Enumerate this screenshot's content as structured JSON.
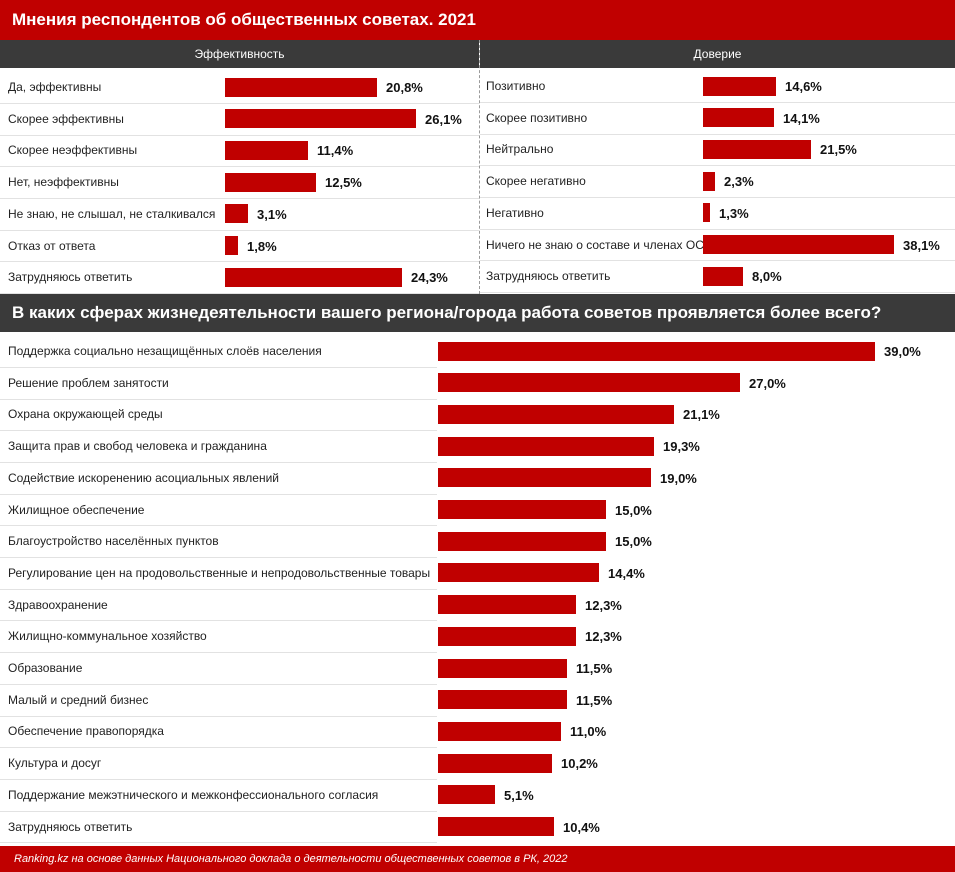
{
  "title": "Мнения респондентов об общественных советах. 2021",
  "colors": {
    "accent": "#c00000",
    "header_dark": "#3a3a3a"
  },
  "chart_data": [
    {
      "type": "bar",
      "orientation": "horizontal",
      "title": "Эффективность",
      "categories": [
        "Да, эффективны",
        "Скорее эффективны",
        "Скорее неэффективны",
        "Нет, неэффективны",
        "Не знаю, не слышал, не сталкивался",
        "Отказ от ответа",
        "Затрудняюсь ответить"
      ],
      "values": [
        20.8,
        26.1,
        11.4,
        12.5,
        3.1,
        1.8,
        24.3
      ],
      "value_labels": [
        "20,8%",
        "26,1%",
        "11,4%",
        "12,5%",
        "3,1%",
        "1,8%",
        "24,3%"
      ],
      "unit": "%"
    },
    {
      "type": "bar",
      "orientation": "horizontal",
      "title": "Доверие",
      "categories": [
        "Позитивно",
        "Скорее позитивно",
        "Нейтрально",
        "Скорее негативно",
        "Негативно",
        "Ничего не знаю о составе и членах ОС",
        "Затрудняюсь ответить"
      ],
      "values": [
        14.6,
        14.1,
        21.5,
        2.3,
        1.3,
        38.1,
        8.0
      ],
      "value_labels": [
        "14,6%",
        "14,1%",
        "21,5%",
        "2,3%",
        "1,3%",
        "38,1%",
        "8,0%"
      ],
      "unit": "%"
    },
    {
      "type": "bar",
      "orientation": "horizontal",
      "title": "В каких сферах жизнедеятельности вашего региона/города работа советов проявляется более всего?",
      "categories": [
        "Поддержка социально незащищённых слоёв населения",
        "Решение проблем занятости",
        "Охрана окружающей среды",
        "Защита прав и свобод человека и гражданина",
        "Содействие искоренению асоциальных явлений",
        "Жилищное обеспечение",
        "Благоустройство населённых пунктов",
        "Регулирование цен на продовольственные и непродовольственные товары",
        "Здравоохранение",
        "Жилищно-коммунальное хозяйство",
        "Образование",
        "Малый и средний бизнес",
        "Обеспечение правопорядка",
        "Культура и досуг",
        "Поддержание межэтнического и межконфессионального согласия",
        "Затрудняюсь ответить"
      ],
      "values": [
        39.0,
        27.0,
        21.1,
        19.3,
        19.0,
        15.0,
        15.0,
        14.4,
        12.3,
        12.3,
        11.5,
        11.5,
        11.0,
        10.2,
        5.1,
        10.4
      ],
      "value_labels": [
        "39,0%",
        "27,0%",
        "21,1%",
        "19,3%",
        "19,0%",
        "15,0%",
        "15,0%",
        "14,4%",
        "12,3%",
        "12,3%",
        "11,5%",
        "11,5%",
        "11,0%",
        "10,2%",
        "5,1%",
        "10,4%"
      ],
      "unit": "%"
    }
  ],
  "source": "Ranking.kz на основе данных Национального доклада о деятельности общественных советов в РК, 2022"
}
